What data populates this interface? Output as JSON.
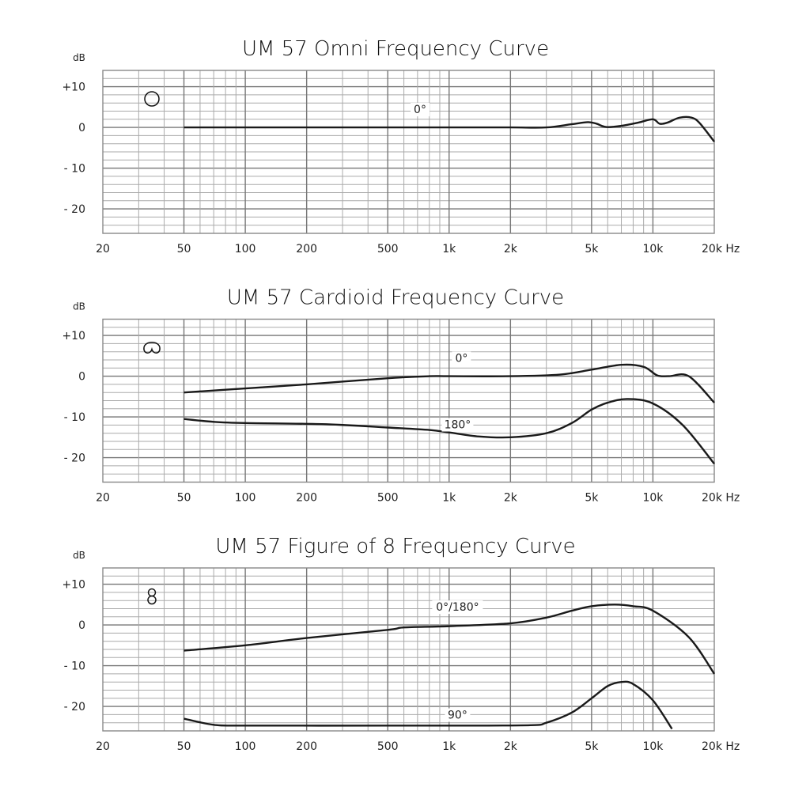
{
  "chart_data": [
    {
      "type": "line",
      "title": "UM 57 Omni Frequency Curve",
      "pattern_icon": "omni-circle-icon",
      "ylabel": "dB",
      "xlabel_unit": "Hz",
      "x_scale": "log",
      "xlim": [
        20,
        20000
      ],
      "ylim": [
        -26,
        14
      ],
      "grid": true,
      "x_ticks": [
        20,
        50,
        100,
        200,
        500,
        1000,
        2000,
        5000,
        10000,
        20000
      ],
      "x_tick_labels": [
        "20",
        "50",
        "100",
        "200",
        "500",
        "1k",
        "2k",
        "5k",
        "10k",
        "20k Hz"
      ],
      "y_ticks": [
        10,
        0,
        -10,
        -20
      ],
      "y_tick_labels": [
        "+10",
        "0",
        "- 10",
        "- 20"
      ],
      "series": [
        {
          "name": "0°",
          "x": [
            50,
            100,
            500,
            1000,
            2000,
            3000,
            4000,
            4800,
            5300,
            5900,
            7000,
            8500,
            10000,
            10800,
            11800,
            13500,
            15500,
            17000,
            20000
          ],
          "y": [
            0,
            0,
            0,
            0,
            0,
            0,
            0.8,
            1.3,
            0.9,
            0.1,
            0.4,
            1.2,
            2.0,
            0.9,
            1.2,
            2.4,
            2.4,
            1.0,
            -3.5
          ]
        }
      ]
    },
    {
      "type": "line",
      "title": "UM 57 Cardioid Frequency Curve",
      "pattern_icon": "cardioid-icon",
      "ylabel": "dB",
      "xlabel_unit": "Hz",
      "x_scale": "log",
      "xlim": [
        20,
        20000
      ],
      "ylim": [
        -26,
        14
      ],
      "grid": true,
      "x_ticks": [
        20,
        50,
        100,
        200,
        500,
        1000,
        2000,
        5000,
        10000,
        20000
      ],
      "x_tick_labels": [
        "20",
        "50",
        "100",
        "200",
        "500",
        "1k",
        "2k",
        "5k",
        "10k",
        "20k Hz"
      ],
      "y_ticks": [
        10,
        0,
        -10,
        -20
      ],
      "y_tick_labels": [
        "+10",
        "0",
        "- 10",
        "- 20"
      ],
      "series": [
        {
          "name": "0°",
          "x": [
            50,
            100,
            200,
            500,
            800,
            1000,
            2000,
            3500,
            5000,
            7000,
            9000,
            10500,
            12000,
            15000,
            20000
          ],
          "y": [
            -4,
            -3,
            -2,
            -0.5,
            0,
            0,
            0,
            0.4,
            1.6,
            2.8,
            2.3,
            0.2,
            0,
            0,
            -6.5
          ]
        },
        {
          "name": "180°",
          "x": [
            50,
            70,
            100,
            250,
            500,
            800,
            1000,
            1400,
            2000,
            3000,
            4000,
            5000,
            6000,
            7500,
            10000,
            14000,
            20000
          ],
          "y": [
            -10.5,
            -11.2,
            -11.5,
            -11.8,
            -12.6,
            -13.2,
            -13.8,
            -14.8,
            -15,
            -14,
            -11.5,
            -8.2,
            -6.5,
            -5.6,
            -6.7,
            -12,
            -21.5
          ]
        }
      ]
    },
    {
      "type": "line",
      "title": "UM 57 Figure of 8 Frequency Curve",
      "pattern_icon": "figure-8-icon",
      "ylabel": "dB",
      "xlabel_unit": "Hz",
      "x_scale": "log",
      "xlim": [
        20,
        20000
      ],
      "ylim": [
        -26,
        14
      ],
      "grid": true,
      "x_ticks": [
        20,
        50,
        100,
        200,
        500,
        1000,
        2000,
        5000,
        10000,
        20000
      ],
      "x_tick_labels": [
        "20",
        "50",
        "100",
        "200",
        "500",
        "1k",
        "2k",
        "5k",
        "10k",
        "20k Hz"
      ],
      "y_ticks": [
        10,
        0,
        -10,
        -20
      ],
      "y_tick_labels": [
        "+10",
        "0",
        "- 10",
        "- 20"
      ],
      "series": [
        {
          "name": "0°/180°",
          "x": [
            50,
            100,
            200,
            500,
            600,
            1000,
            2000,
            3000,
            4000,
            5000,
            6500,
            8000,
            10000,
            15000,
            20000
          ],
          "y": [
            -6.3,
            -5,
            -3.2,
            -1.2,
            -0.6,
            -0.3,
            0.4,
            1.8,
            3.5,
            4.6,
            5,
            4.6,
            3.5,
            -3,
            -12
          ]
        },
        {
          "name": "90°",
          "x": [
            50,
            70,
            100,
            500,
            1000,
            2500,
            3000,
            4000,
            5000,
            6000,
            7000,
            8000,
            10000,
            12400
          ],
          "y": [
            -23,
            -24.5,
            -24.7,
            -24.7,
            -24.7,
            -24.6,
            -24,
            -21.5,
            -18,
            -15,
            -14,
            -14.5,
            -18.5,
            -25.5
          ]
        }
      ]
    }
  ]
}
